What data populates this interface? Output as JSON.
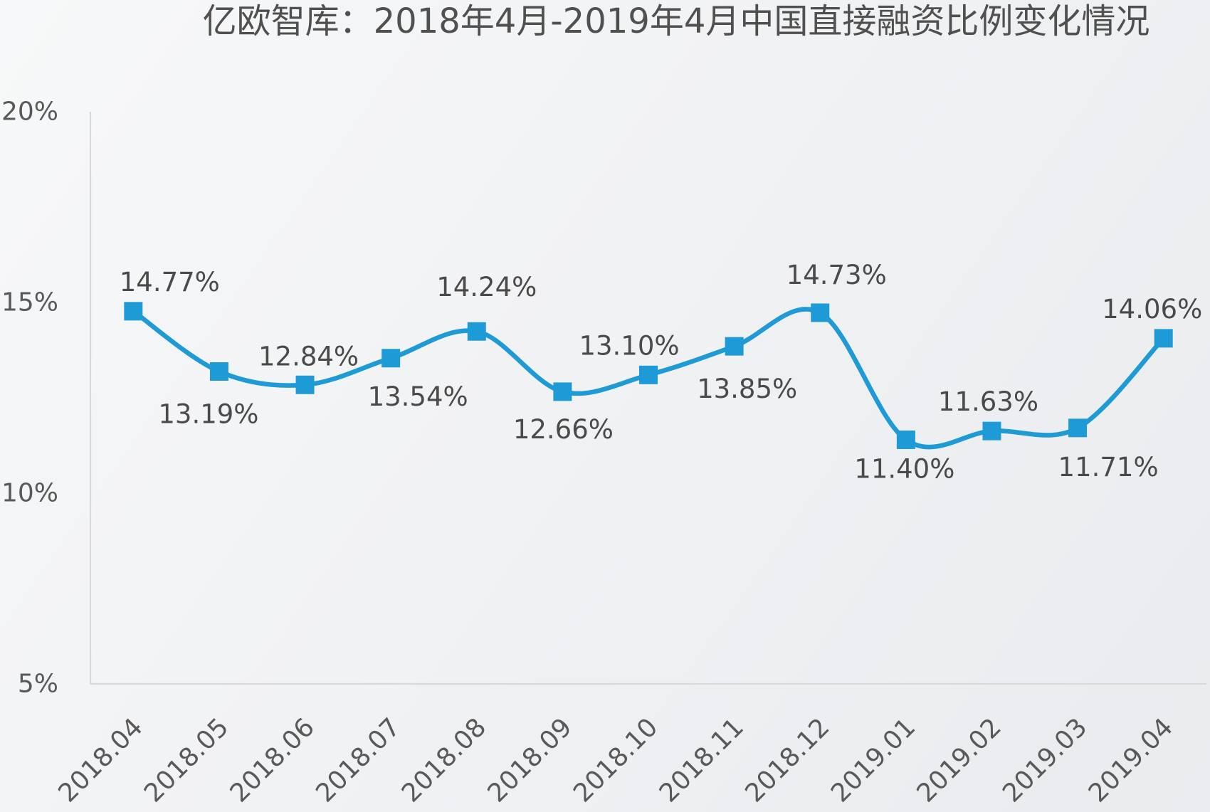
{
  "chart_data": {
    "type": "line",
    "title": "亿欧智库：2018年4月-2019年4月中国直接融资比例变化情况",
    "categories": [
      "2018.04",
      "2018.05",
      "2018.06",
      "2018.07",
      "2018.08",
      "2018.09",
      "2018.10",
      "2018.11",
      "2018.12",
      "2019.01",
      "2019.02",
      "2019.03",
      "2019.04"
    ],
    "series": [
      {
        "values": [
          14.77,
          13.19,
          12.84,
          13.54,
          14.24,
          12.66,
          13.1,
          13.85,
          14.73,
          11.4,
          11.63,
          11.71,
          14.06
        ],
        "data_labels": [
          "14.77%",
          "13.19%",
          "12.84%",
          "13.54%",
          "14.24%",
          "12.66%",
          "13.10%",
          "13.85%",
          "14.73%",
          "11.40%",
          "11.63%",
          "11.71%",
          "14.06%"
        ],
        "color": "#1E9BD7"
      }
    ],
    "ylim": [
      5,
      20
    ],
    "yticks": [
      20,
      15,
      10,
      5
    ],
    "ytick_labels": [
      "20%",
      "15%",
      "10%",
      "5%"
    ],
    "grid": false
  },
  "colors": {
    "axis": "#D9D9D9",
    "title": "#505050",
    "tick_text": "#595959",
    "label_text": "#4A4A4A"
  }
}
